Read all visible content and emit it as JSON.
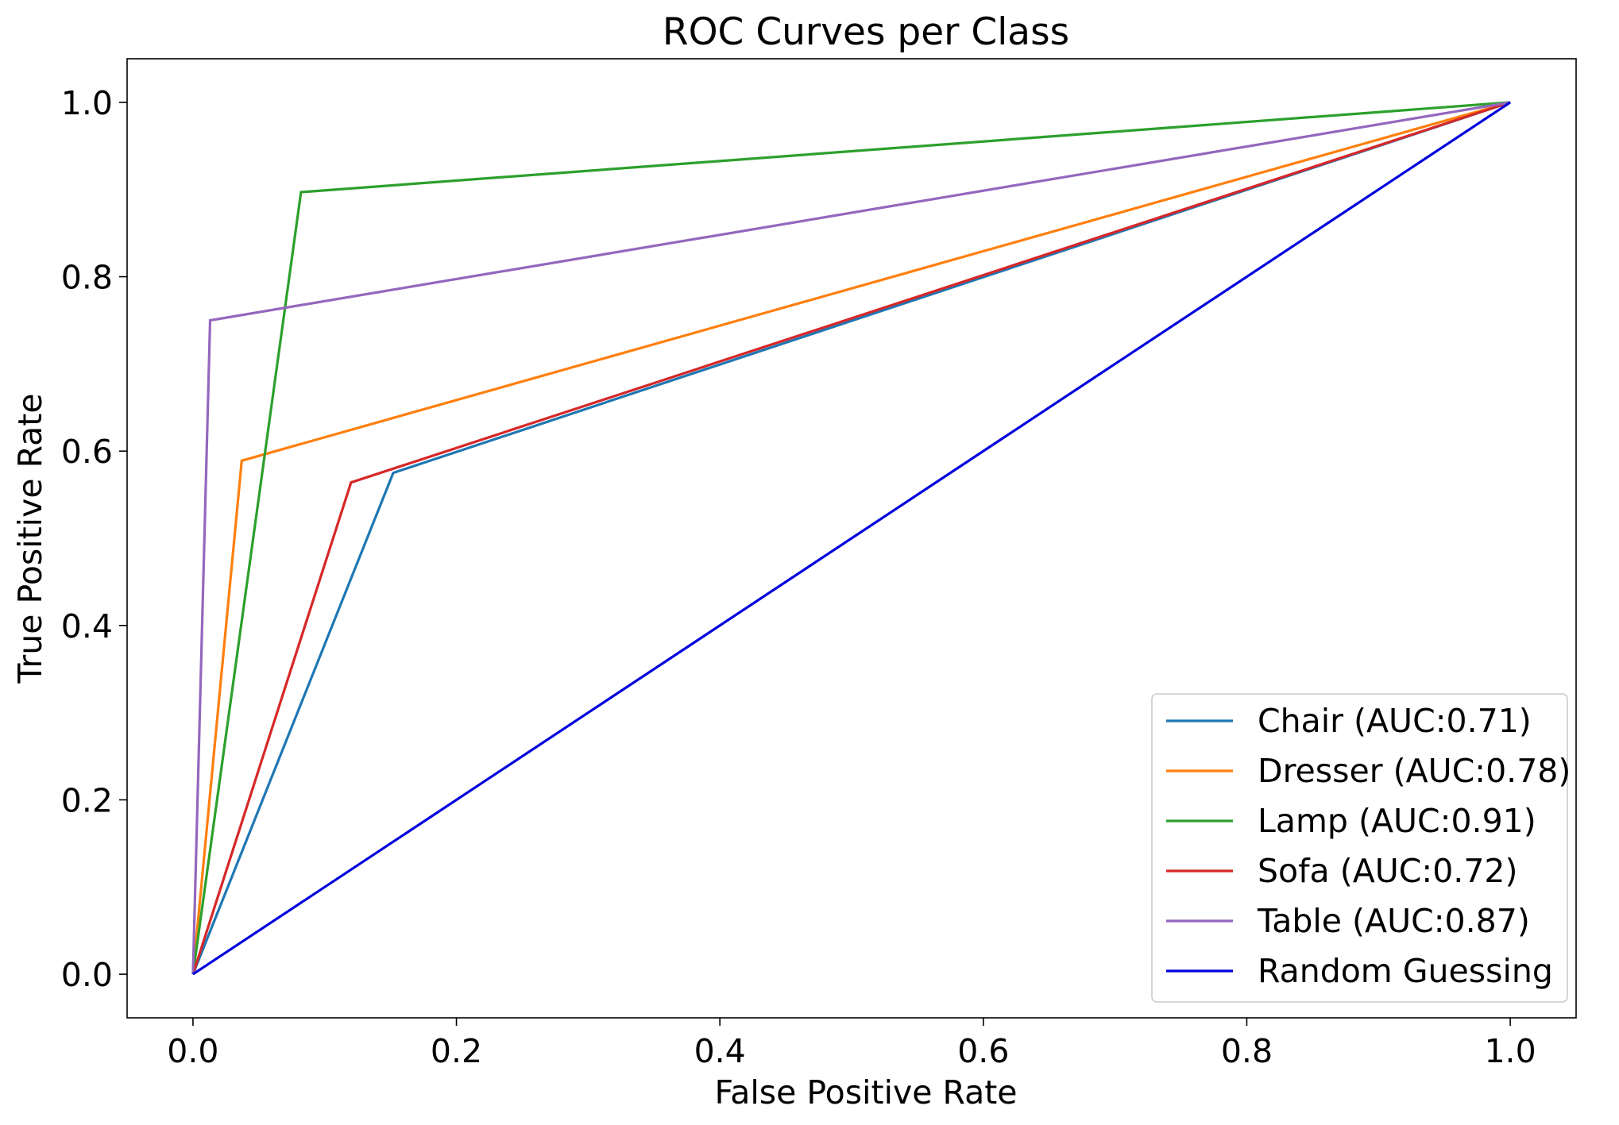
{
  "chart_data": {
    "type": "line",
    "title": "ROC Curves per Class",
    "xlabel": "False Positive Rate",
    "ylabel": "True Positive Rate",
    "xlim": [
      -0.05,
      1.05
    ],
    "ylim": [
      -0.05,
      1.05
    ],
    "x_ticks": [
      "0.0",
      "0.2",
      "0.4",
      "0.6",
      "0.8",
      "1.0"
    ],
    "y_ticks": [
      "0.0",
      "0.2",
      "0.4",
      "0.6",
      "0.8",
      "1.0"
    ],
    "grid": false,
    "legend_position": "lower right",
    "series": [
      {
        "name": "Chair (AUC:0.71)",
        "color": "#1f77b4",
        "points": [
          [
            0.0,
            0.0
          ],
          [
            0.152,
            0.575
          ],
          [
            1.0,
            1.0
          ]
        ]
      },
      {
        "name": "Dresser (AUC:0.78)",
        "color": "#ff7f0e",
        "points": [
          [
            0.0,
            0.0
          ],
          [
            0.037,
            0.589
          ],
          [
            1.0,
            1.0
          ]
        ]
      },
      {
        "name": "Lamp (AUC:0.91)",
        "color": "#2ca02c",
        "points": [
          [
            0.0,
            0.0
          ],
          [
            0.082,
            0.897
          ],
          [
            1.0,
            1.0
          ]
        ]
      },
      {
        "name": "Sofa (AUC:0.72)",
        "color": "#d62728",
        "points": [
          [
            0.0,
            0.0
          ],
          [
            0.12,
            0.564
          ],
          [
            1.0,
            1.0
          ]
        ]
      },
      {
        "name": "Table (AUC:0.87)",
        "color": "#9467bd",
        "points": [
          [
            0.0,
            0.0
          ],
          [
            0.013,
            0.75
          ],
          [
            1.0,
            1.0
          ]
        ]
      },
      {
        "name": "Random Guessing",
        "color": "#0000dd",
        "points": [
          [
            0.0,
            0.0
          ],
          [
            1.0,
            1.0
          ]
        ]
      }
    ]
  }
}
